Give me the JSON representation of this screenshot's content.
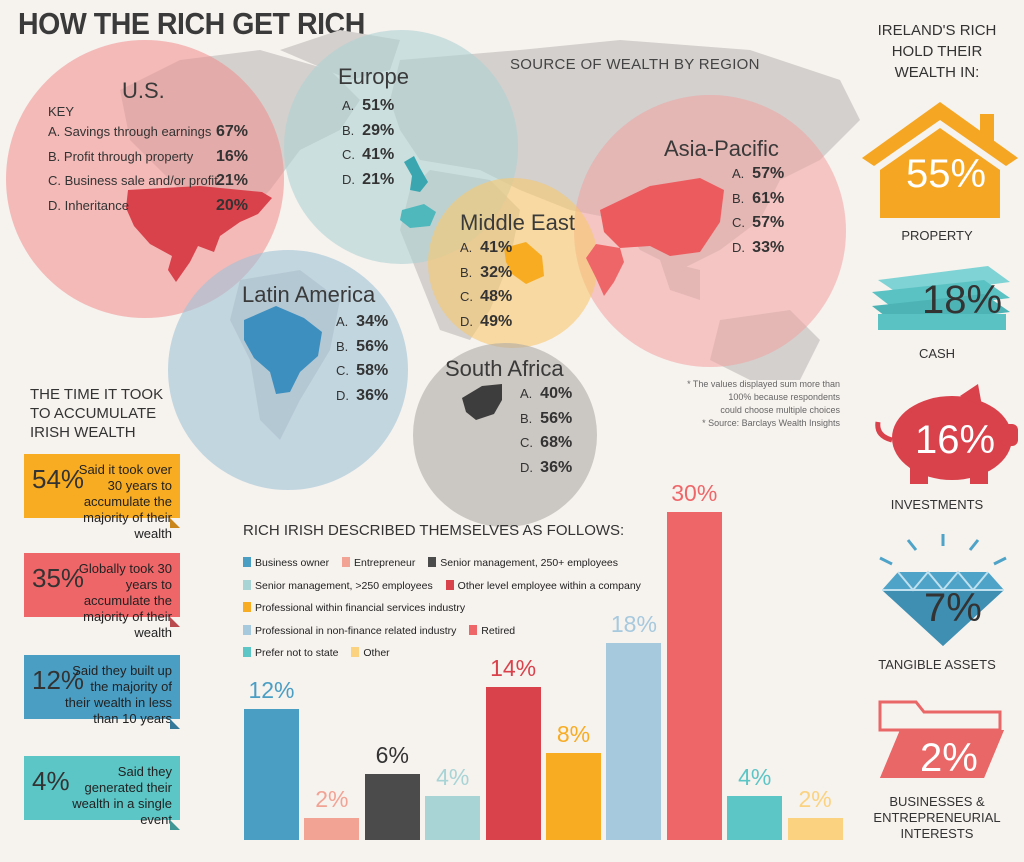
{
  "title": "HOW THE RICH GET RICH",
  "map_title": "SOURCE OF WEALTH BY REGION",
  "key": {
    "heading": "KEY",
    "items": [
      {
        "label": "A. Savings through earnings",
        "value": "67%"
      },
      {
        "label": "B. Profit through property",
        "value": "16%"
      },
      {
        "label": "C. Business sale and/or profit",
        "value": "21%"
      },
      {
        "label": "D. Inheritance",
        "value": "20%"
      }
    ]
  },
  "regions": [
    {
      "name": "U.S.",
      "color": "#e88f8f"
    },
    {
      "name": "Europe",
      "values": [
        {
          "l": "A.",
          "v": "51%"
        },
        {
          "l": "B.",
          "v": "29%"
        },
        {
          "l": "C.",
          "v": "41%"
        },
        {
          "l": "D.",
          "v": "21%"
        }
      ],
      "color": "#a9cfd1"
    },
    {
      "name": "Asia-Pacific",
      "values": [
        {
          "l": "A.",
          "v": "57%"
        },
        {
          "l": "B.",
          "v": "61%"
        },
        {
          "l": "C.",
          "v": "57%"
        },
        {
          "l": "D.",
          "v": "33%"
        }
      ],
      "color": "#f0a7a7"
    },
    {
      "name": "Middle East",
      "values": [
        {
          "l": "A.",
          "v": "41%"
        },
        {
          "l": "B.",
          "v": "32%"
        },
        {
          "l": "C.",
          "v": "48%"
        },
        {
          "l": "D.",
          "v": "49%"
        }
      ],
      "color": "#f7c873"
    },
    {
      "name": "Latin America",
      "values": [
        {
          "l": "A.",
          "v": "34%"
        },
        {
          "l": "B.",
          "v": "56%"
        },
        {
          "l": "C.",
          "v": "58%"
        },
        {
          "l": "D.",
          "v": "36%"
        }
      ],
      "color": "#9fbfd6"
    },
    {
      "name": "South Africa",
      "values": [
        {
          "l": "A.",
          "v": "40%"
        },
        {
          "l": "B.",
          "v": "56%"
        },
        {
          "l": "C.",
          "v": "68%"
        },
        {
          "l": "D.",
          "v": "36%"
        }
      ],
      "color": "#b3aeaa"
    }
  ],
  "note": {
    "line1": "* The values displayed sum more than",
    "line2": "100% because respondents",
    "line3": "could choose multiple choices",
    "line4": "* Source: Barclays Wealth Insights"
  },
  "ireland": {
    "title_1": "IRELAND'S RICH",
    "title_2": "HOLD THEIR",
    "title_3": "WEALTH IN:",
    "items": [
      {
        "value": "55%",
        "label": "PROPERTY",
        "icon": "house-icon",
        "color": "#f5a623"
      },
      {
        "value": "18%",
        "label": "CASH",
        "icon": "money-stack-icon",
        "color": "#5bc2c4"
      },
      {
        "value": "16%",
        "label": "INVESTMENTS",
        "icon": "piggy-bank-icon",
        "color": "#d9414b"
      },
      {
        "value": "7%",
        "label": "TANGIBLE ASSETS",
        "icon": "diamond-icon",
        "color": "#4ea3c8"
      },
      {
        "value": "2%",
        "label_1": "BUSINESSES &",
        "label_2": "ENTREPRENEURIAL",
        "label_3": "INTERESTS",
        "icon": "folder-icon",
        "color": "#ea6767"
      }
    ]
  },
  "time": {
    "title_1": "THE TIME IT TOOK",
    "title_2": "TO ACCUMULATE",
    "title_3": "IRISH WEALTH",
    "items": [
      {
        "value": "54%",
        "text": "Said it took over 30 years to accumulate the majority of their wealth",
        "color": "#f8ac22"
      },
      {
        "value": "35%",
        "text": "Globally took 30 years to accumulate the majority of their wealth",
        "color": "#ef6669"
      },
      {
        "value": "12%",
        "text": "Said they built up the majority of their wealth in less than 10 years",
        "color": "#4a9ec4"
      },
      {
        "value": "4%",
        "text": "Said they generated their wealth in a single event",
        "color": "#5cc5c5"
      }
    ]
  },
  "chart_data": {
    "type": "bar",
    "title": "RICH IRISH DESCRIBED THEMSELVES AS FOLLOWS:",
    "categories": [
      "Business owner",
      "Entrepreneur",
      "Senior management, 250+ employees",
      "Senior management, >250 employees",
      "Other level employee within a company",
      "Professional within financial services industry",
      "Professional in non-finance related industry",
      "Retired",
      "Prefer not to state",
      "Other"
    ],
    "values": [
      12,
      2,
      6,
      4,
      14,
      8,
      18,
      30,
      4,
      2
    ],
    "labels": [
      "12%",
      "2%",
      "6%",
      "4%",
      "14%",
      "8%",
      "18%",
      "30%",
      "4%",
      "2%"
    ],
    "colors": [
      "#4a9ec4",
      "#f2a394",
      "#4b4b4b",
      "#a9d4d6",
      "#d9414b",
      "#f8ac22",
      "#a6c9de",
      "#ef6669",
      "#5cc5c5",
      "#fbd27f"
    ],
    "ylim": [
      0,
      30
    ],
    "xlabel": "",
    "ylabel": ""
  }
}
